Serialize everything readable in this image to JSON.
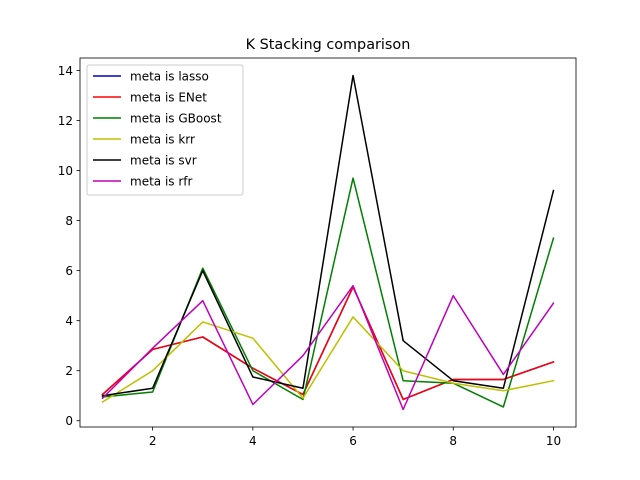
{
  "chart_data": {
    "type": "line",
    "title": "K Stacking comparison",
    "xlabel": "",
    "ylabel": "",
    "x": [
      1,
      2,
      3,
      4,
      5,
      6,
      7,
      8,
      9,
      10
    ],
    "xlim": [
      0.55,
      10.45
    ],
    "ylim": [
      -0.25,
      14.5
    ],
    "xticks": [
      2,
      4,
      6,
      8,
      10
    ],
    "yticks": [
      0,
      2,
      4,
      6,
      8,
      10,
      12,
      14
    ],
    "grid": false,
    "legend_position": "upper left",
    "series": [
      {
        "name": "meta is lasso",
        "color": "#0000bf",
        "values": [
          1.05,
          2.85,
          3.35,
          2.1,
          1.05,
          5.35,
          0.85,
          1.65,
          1.65,
          2.35
        ]
      },
      {
        "name": "meta is ENet",
        "color": "#ff0000",
        "values": [
          1.05,
          2.85,
          3.35,
          2.1,
          1.05,
          5.35,
          0.85,
          1.65,
          1.65,
          2.35
        ]
      },
      {
        "name": "meta is GBoost",
        "color": "#008000",
        "values": [
          0.95,
          1.15,
          6.1,
          2.0,
          0.85,
          9.7,
          1.6,
          1.5,
          0.55,
          7.3
        ]
      },
      {
        "name": "meta is krr",
        "color": "#bfbf00",
        "values": [
          0.75,
          2.0,
          3.95,
          3.3,
          0.9,
          4.15,
          2.0,
          1.5,
          1.2,
          1.6
        ]
      },
      {
        "name": "meta is svr",
        "color": "#000000",
        "values": [
          1.0,
          1.3,
          6.0,
          1.75,
          1.3,
          13.8,
          3.2,
          1.6,
          1.3,
          9.2
        ]
      },
      {
        "name": "meta is rfr",
        "color": "#bf00bf",
        "values": [
          0.9,
          2.9,
          4.8,
          0.65,
          2.6,
          5.4,
          0.45,
          5.0,
          1.85,
          4.7
        ]
      }
    ]
  }
}
